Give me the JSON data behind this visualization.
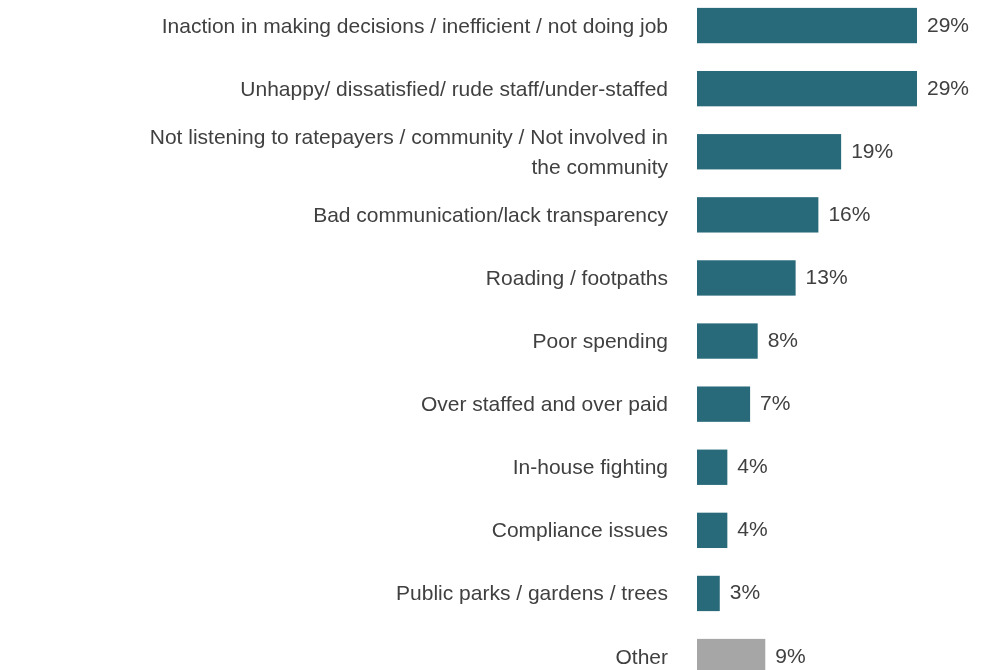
{
  "chart_data": {
    "type": "bar",
    "orientation": "horizontal",
    "categories": [
      "Inaction in making decisions / inefficient / not doing job",
      "Unhappy/ dissatisfied/ rude staff/under-staffed",
      "Not listening to ratepayers / community / Not involved in the community",
      "Bad communication/lack transparency",
      "Roading / footpaths",
      "Poor spending",
      "Over staffed and over paid",
      "In-house fighting",
      "Compliance issues",
      "Public parks / gardens / trees",
      "Other"
    ],
    "values": [
      29,
      29,
      19,
      16,
      13,
      8,
      7,
      4,
      4,
      3,
      9
    ],
    "colors": [
      "#286a7a",
      "#286a7a",
      "#286a7a",
      "#286a7a",
      "#286a7a",
      "#286a7a",
      "#286a7a",
      "#286a7a",
      "#286a7a",
      "#286a7a",
      "#a6a6a6"
    ],
    "value_labels": [
      "29%",
      "29%",
      "19%",
      "16%",
      "13%",
      "8%",
      "7%",
      "4%",
      "4%",
      "3%",
      "9%"
    ]
  }
}
